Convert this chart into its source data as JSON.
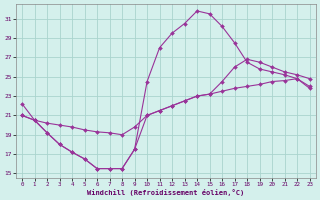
{
  "xlabel": "Windchill (Refroidissement éolien,°C)",
  "background_color": "#d4f0ec",
  "grid_color": "#aad4ce",
  "line_color": "#993399",
  "xlim": [
    -0.5,
    23.5
  ],
  "ylim": [
    14.5,
    32.5
  ],
  "yticks": [
    15,
    17,
    19,
    21,
    23,
    25,
    27,
    29,
    31
  ],
  "xticks": [
    0,
    1,
    2,
    3,
    4,
    5,
    6,
    7,
    8,
    9,
    10,
    11,
    12,
    13,
    14,
    15,
    16,
    17,
    18,
    19,
    20,
    21,
    22,
    23
  ],
  "line1_x": [
    0,
    1,
    2,
    3,
    4,
    5,
    6,
    7,
    8,
    9,
    10,
    11,
    12,
    13,
    14,
    15,
    16,
    17,
    18,
    19,
    20,
    21,
    22,
    23
  ],
  "line1_y": [
    22.2,
    20.5,
    19.2,
    18.0,
    17.2,
    16.5,
    15.5,
    15.5,
    15.5,
    17.5,
    24.5,
    28.0,
    29.5,
    30.5,
    31.8,
    31.5,
    30.2,
    28.5,
    26.5,
    25.8,
    25.5,
    25.2,
    24.8,
    24.0
  ],
  "line2_x": [
    0,
    1,
    2,
    3,
    4,
    5,
    6,
    7,
    8,
    9,
    10,
    11,
    12,
    13,
    14,
    15,
    16,
    17,
    18,
    19,
    20,
    21,
    22,
    23
  ],
  "line2_y": [
    21.0,
    20.5,
    20.2,
    20.0,
    19.8,
    19.5,
    19.3,
    19.2,
    19.0,
    19.8,
    21.0,
    21.5,
    22.0,
    22.5,
    23.0,
    23.2,
    23.5,
    23.8,
    24.0,
    24.2,
    24.5,
    24.6,
    24.8,
    23.8
  ],
  "line3_x": [
    0,
    1,
    2,
    3,
    4,
    5,
    6,
    7,
    8,
    9,
    10,
    11,
    12,
    13,
    14,
    15,
    16,
    17,
    18,
    19,
    20,
    21,
    22,
    23
  ],
  "line3_y": [
    21.0,
    20.5,
    19.2,
    18.0,
    17.2,
    16.5,
    15.5,
    15.5,
    15.5,
    17.5,
    21.0,
    21.5,
    22.0,
    22.5,
    23.0,
    23.2,
    24.5,
    26.0,
    26.8,
    26.5,
    26.0,
    25.5,
    25.2,
    24.8
  ]
}
